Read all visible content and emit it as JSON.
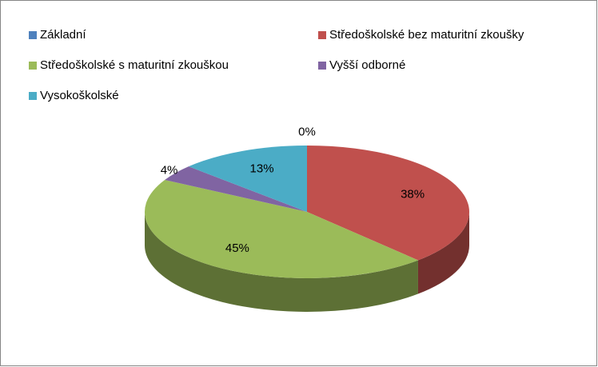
{
  "chart_data": {
    "type": "pie3d",
    "categories": [
      "Základní",
      "Středoškolské bez maturitní zkoušky",
      "Středoškolské s maturitní zkouškou",
      "Vyšší odborné",
      "Vysokoškolské"
    ],
    "values": [
      0,
      38,
      45,
      4,
      13
    ],
    "value_labels": [
      "0%",
      "38%",
      "45%",
      "4%",
      "13%"
    ],
    "colors": [
      "#4f81bd",
      "#c0504d",
      "#9bbb59",
      "#8064a2",
      "#4bacc6"
    ],
    "legend": "top"
  }
}
